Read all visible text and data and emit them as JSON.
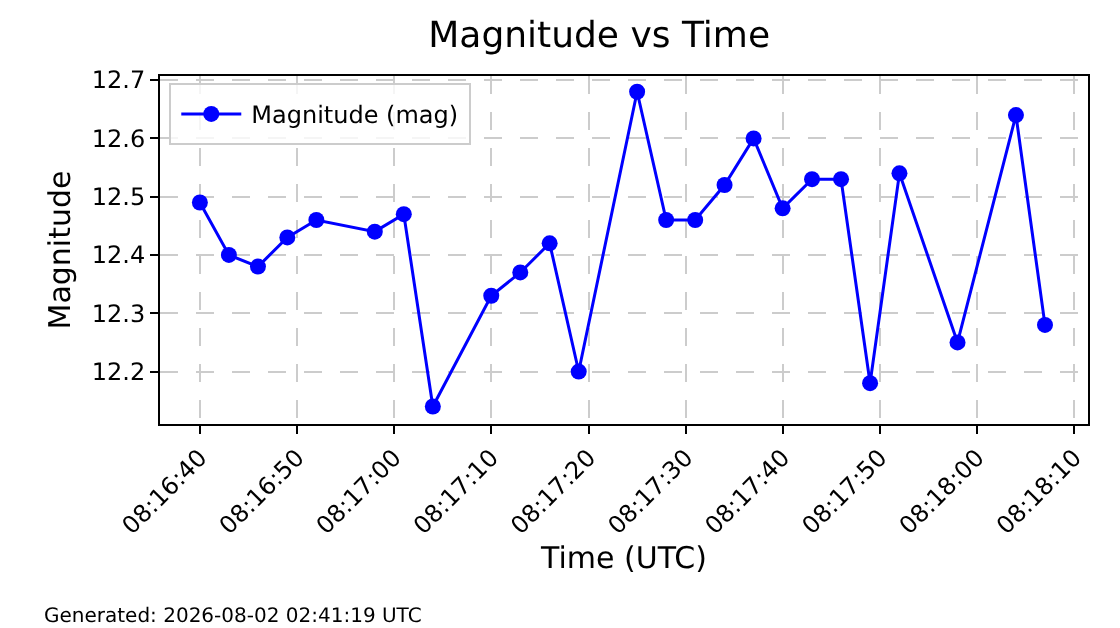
{
  "chart_data": {
    "type": "line",
    "title": "Magnitude vs Time",
    "xlabel": "Time (UTC)",
    "ylabel": "Magnitude",
    "annotations": [
      "Generated: 2026-08-02 02:41:19 UTC"
    ],
    "x": [
      8.27778,
      8.27861,
      8.27944,
      8.28028,
      8.28111,
      8.28278,
      8.28361,
      8.28444,
      8.28611,
      8.28694,
      8.28778,
      8.28861,
      8.29028,
      8.29111,
      8.29194,
      8.29278,
      8.29361,
      8.29444,
      8.29528,
      8.29611,
      8.29694,
      8.29778,
      8.29944,
      8.30111,
      8.30194
    ],
    "series": [
      {
        "name": "Magnitude (mag)",
        "color": "#0000ff",
        "values": [
          12.49,
          12.4,
          12.38,
          12.43,
          12.46,
          12.44,
          12.47,
          12.14,
          12.33,
          12.37,
          12.42,
          12.2,
          12.68,
          12.46,
          12.46,
          12.52,
          12.6,
          12.48,
          12.53,
          12.53,
          12.18,
          12.54,
          12.25,
          12.64,
          12.28
        ]
      }
    ],
    "xlim": [
      8.27664,
      8.30317
    ],
    "xticks": [
      {
        "value": 8.27778,
        "label": "08:16:40"
      },
      {
        "value": 8.28056,
        "label": "08:16:50"
      },
      {
        "value": 8.28333,
        "label": "08:17:00"
      },
      {
        "value": 8.28611,
        "label": "08:17:10"
      },
      {
        "value": 8.28889,
        "label": "08:17:20"
      },
      {
        "value": 8.29167,
        "label": "08:17:30"
      },
      {
        "value": 8.29444,
        "label": "08:17:40"
      },
      {
        "value": 8.29722,
        "label": "08:17:50"
      },
      {
        "value": 8.3,
        "label": "08:18:00"
      },
      {
        "value": 8.30278,
        "label": "08:18:10"
      }
    ],
    "ylim": [
      12.11,
      12.707
    ],
    "yticks": [
      12.2,
      12.3,
      12.4,
      12.5,
      12.6,
      12.7
    ],
    "grid": true,
    "legend": "top left",
    "marker": "circle",
    "line_style": "solid"
  }
}
